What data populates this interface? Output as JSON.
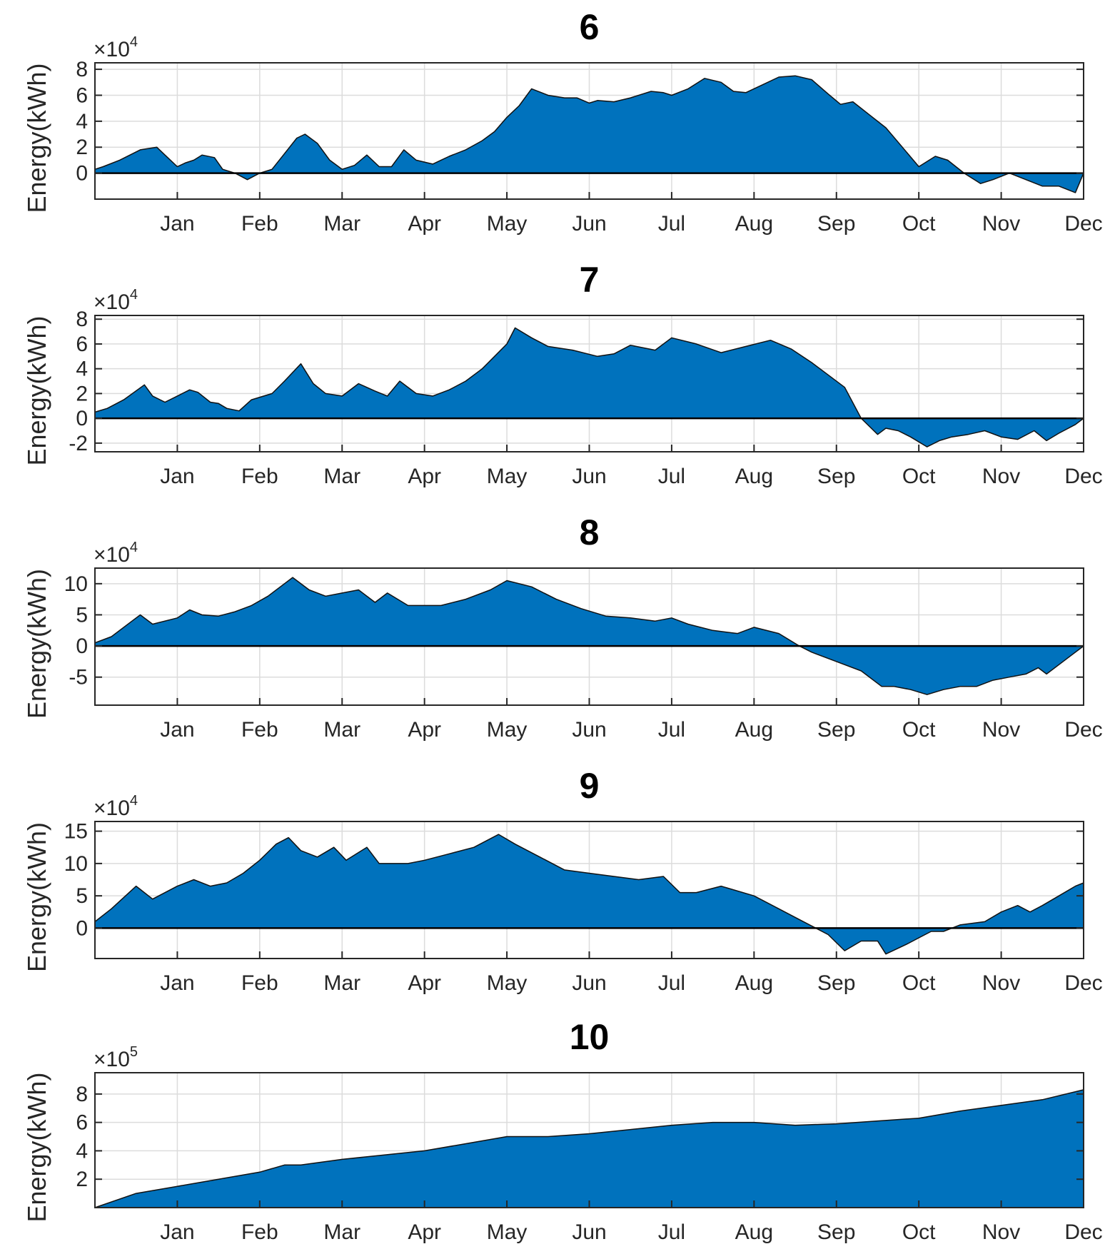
{
  "chart_data": [
    {
      "type": "area",
      "title": "6",
      "ylabel": "Energy(kWh)",
      "multiplier_base": "×10",
      "multiplier_exp": "4",
      "scale": 10000,
      "ylim": [
        -2,
        8.5
      ],
      "yticks": [
        0,
        2,
        4,
        6,
        8
      ],
      "ytick_labels": [
        "0",
        "2",
        "4",
        "6",
        "8"
      ],
      "fill_color": "#0072BD",
      "month_labels": [
        "Jan",
        "Feb",
        "Mar",
        "Apr",
        "May",
        "Jun",
        "Jul",
        "Aug",
        "Sep",
        "Oct",
        "Nov",
        "Dec"
      ],
      "x": [
        0,
        0.1,
        0.3,
        0.55,
        0.75,
        0.85,
        1.0,
        1.1,
        1.2,
        1.3,
        1.45,
        1.55,
        1.7,
        1.85,
        2.0,
        2.15,
        2.3,
        2.45,
        2.55,
        2.7,
        2.85,
        3.0,
        3.15,
        3.3,
        3.45,
        3.6,
        3.75,
        3.9,
        4.1,
        4.2,
        4.3,
        4.5,
        4.7,
        4.85,
        5.0,
        5.15,
        5.3,
        5.5,
        5.7,
        5.85,
        6.0,
        6.1,
        6.3,
        6.5,
        6.75,
        6.9,
        7.0,
        7.2,
        7.4,
        7.6,
        7.75,
        7.9,
        8.1,
        8.3,
        8.5,
        8.7,
        8.9,
        9.05,
        9.2,
        9.4,
        9.6,
        9.8,
        10.0,
        10.2,
        10.35,
        10.55,
        10.75,
        10.9,
        11.1,
        11.3,
        11.5,
        11.7,
        11.9,
        12.0
      ],
      "values": [
        0.3,
        0.5,
        1.0,
        1.8,
        2.0,
        1.4,
        0.5,
        0.8,
        1.0,
        1.4,
        1.2,
        0.3,
        0.0,
        -0.5,
        0.0,
        0.3,
        1.5,
        2.7,
        3.0,
        2.3,
        1.0,
        0.3,
        0.6,
        1.4,
        0.5,
        0.5,
        1.8,
        1.0,
        0.7,
        1.0,
        1.3,
        1.8,
        2.5,
        3.2,
        4.3,
        5.2,
        6.5,
        6.0,
        5.8,
        5.8,
        5.4,
        5.6,
        5.5,
        5.8,
        6.3,
        6.2,
        6.0,
        6.5,
        7.3,
        7.0,
        6.3,
        6.2,
        6.8,
        7.4,
        7.5,
        7.2,
        6.1,
        5.3,
        5.5,
        4.5,
        3.5,
        2.0,
        0.5,
        1.3,
        1.0,
        0.0,
        -0.8,
        -0.5,
        0.0,
        -0.5,
        -1.0,
        -1.0,
        -1.5,
        0.0
      ]
    },
    {
      "type": "area",
      "title": "7",
      "ylabel": "Energy(kWh)",
      "multiplier_base": "×10",
      "multiplier_exp": "4",
      "scale": 10000,
      "ylim": [
        -2.7,
        8.3
      ],
      "yticks": [
        -2,
        0,
        2,
        4,
        6,
        8
      ],
      "ytick_labels": [
        "-2",
        "0",
        "2",
        "4",
        "6",
        "8"
      ],
      "fill_color": "#0072BD",
      "month_labels": [
        "Jan",
        "Feb",
        "Mar",
        "Apr",
        "May",
        "Jun",
        "Jul",
        "Aug",
        "Sep",
        "Oct",
        "Nov",
        "Dec"
      ],
      "x": [
        0,
        0.15,
        0.35,
        0.6,
        0.7,
        0.85,
        1.0,
        1.15,
        1.25,
        1.4,
        1.5,
        1.6,
        1.75,
        1.9,
        2.15,
        2.3,
        2.5,
        2.65,
        2.8,
        3.0,
        3.2,
        3.4,
        3.55,
        3.7,
        3.9,
        4.1,
        4.3,
        4.5,
        4.7,
        4.85,
        5.0,
        5.1,
        5.3,
        5.5,
        5.8,
        6.1,
        6.3,
        6.5,
        6.8,
        7.0,
        7.3,
        7.6,
        7.9,
        8.2,
        8.45,
        8.7,
        8.9,
        9.1,
        9.3,
        9.5,
        9.6,
        9.75,
        9.9,
        10.1,
        10.25,
        10.4,
        10.6,
        10.8,
        11.0,
        11.2,
        11.4,
        11.55,
        11.7,
        11.9,
        12.0
      ],
      "values": [
        0.5,
        0.8,
        1.5,
        2.7,
        1.8,
        1.3,
        1.8,
        2.3,
        2.1,
        1.3,
        1.2,
        0.8,
        0.6,
        1.5,
        2.0,
        3.0,
        4.4,
        2.8,
        2.0,
        1.8,
        2.8,
        2.2,
        1.8,
        3.0,
        2.0,
        1.8,
        2.3,
        3.0,
        4.0,
        5.0,
        6.0,
        7.3,
        6.5,
        5.8,
        5.5,
        5.0,
        5.2,
        5.9,
        5.5,
        6.5,
        6.0,
        5.3,
        5.8,
        6.3,
        5.6,
        4.5,
        3.5,
        2.5,
        0.0,
        -1.3,
        -0.8,
        -1.0,
        -1.5,
        -2.3,
        -1.8,
        -1.5,
        -1.3,
        -1.0,
        -1.5,
        -1.7,
        -1.0,
        -1.8,
        -1.2,
        -0.5,
        0.0
      ]
    },
    {
      "type": "area",
      "title": "8",
      "ylabel": "Energy(kWh)",
      "multiplier_base": "×10",
      "multiplier_exp": "4",
      "scale": 10000,
      "ylim": [
        -9.5,
        12.5
      ],
      "yticks": [
        -5,
        0,
        5,
        10
      ],
      "ytick_labels": [
        "-5",
        "0",
        "5",
        "10"
      ],
      "fill_color": "#0072BD",
      "month_labels": [
        "Jan",
        "Feb",
        "Mar",
        "Apr",
        "May",
        "Jun",
        "Jul",
        "Aug",
        "Sep",
        "Oct",
        "Nov",
        "Dec"
      ],
      "x": [
        0,
        0.2,
        0.45,
        0.55,
        0.7,
        1.0,
        1.15,
        1.3,
        1.5,
        1.7,
        1.9,
        2.1,
        2.3,
        2.4,
        2.6,
        2.8,
        3.0,
        3.2,
        3.4,
        3.55,
        3.8,
        4.0,
        4.2,
        4.5,
        4.8,
        5.0,
        5.3,
        5.6,
        5.9,
        6.2,
        6.5,
        6.8,
        7.0,
        7.2,
        7.5,
        7.8,
        8.0,
        8.3,
        8.55,
        8.7,
        9.0,
        9.3,
        9.55,
        9.7,
        9.9,
        10.1,
        10.3,
        10.5,
        10.7,
        10.9,
        11.1,
        11.3,
        11.45,
        11.55,
        11.7,
        11.85,
        12.0
      ],
      "values": [
        0.5,
        1.5,
        4.0,
        5.0,
        3.5,
        4.5,
        5.8,
        5.0,
        4.8,
        5.5,
        6.5,
        8.0,
        10.0,
        11.0,
        9.0,
        8.0,
        8.5,
        9.0,
        7.0,
        8.5,
        6.5,
        6.5,
        6.5,
        7.5,
        9.0,
        10.5,
        9.5,
        7.5,
        6.0,
        4.8,
        4.5,
        4.0,
        4.5,
        3.5,
        2.5,
        2.0,
        3.0,
        2.0,
        0.0,
        -1.0,
        -2.5,
        -4.0,
        -6.5,
        -6.5,
        -7.0,
        -7.8,
        -7.0,
        -6.5,
        -6.5,
        -5.5,
        -5.0,
        -4.5,
        -3.5,
        -4.5,
        -3.0,
        -1.5,
        0.0
      ]
    },
    {
      "type": "area",
      "title": "9",
      "ylabel": "Energy(kWh)",
      "multiplier_base": "×10",
      "multiplier_exp": "4",
      "scale": 10000,
      "ylim": [
        -4.7,
        16.5
      ],
      "yticks": [
        0,
        5,
        10,
        15
      ],
      "ytick_labels": [
        "0",
        "5",
        "10",
        "15"
      ],
      "fill_color": "#0072BD",
      "month_labels": [
        "Jan",
        "Feb",
        "Mar",
        "Apr",
        "May",
        "Jun",
        "Jul",
        "Aug",
        "Sep",
        "Oct",
        "Nov",
        "Dec"
      ],
      "x": [
        0,
        0.2,
        0.5,
        0.55,
        0.7,
        1.0,
        1.2,
        1.4,
        1.6,
        1.8,
        2.0,
        2.2,
        2.35,
        2.5,
        2.7,
        2.9,
        3.05,
        3.3,
        3.45,
        3.8,
        4.0,
        4.3,
        4.6,
        4.9,
        5.1,
        5.4,
        5.7,
        6.0,
        6.3,
        6.6,
        6.9,
        7.1,
        7.3,
        7.6,
        8.0,
        8.3,
        8.6,
        8.9,
        9.1,
        9.3,
        9.5,
        9.6,
        9.85,
        10.0,
        10.15,
        10.3,
        10.5,
        10.8,
        11.0,
        11.2,
        11.35,
        11.5,
        11.7,
        11.9,
        12.0
      ],
      "values": [
        1.0,
        3.0,
        6.5,
        6.0,
        4.5,
        6.5,
        7.5,
        6.5,
        7.0,
        8.5,
        10.5,
        13.0,
        14.0,
        12.0,
        11.0,
        12.5,
        10.5,
        12.5,
        10.0,
        10.0,
        10.5,
        11.5,
        12.5,
        14.5,
        13.0,
        11.0,
        9.0,
        8.5,
        8.0,
        7.5,
        8.0,
        5.5,
        5.5,
        6.5,
        5.0,
        3.0,
        1.0,
        -1.0,
        -3.5,
        -2.0,
        -2.0,
        -4.0,
        -2.5,
        -1.5,
        -0.5,
        -0.5,
        0.5,
        1.0,
        2.5,
        3.5,
        2.5,
        3.5,
        5.0,
        6.5,
        7.0
      ]
    },
    {
      "type": "area",
      "title": "10",
      "ylabel": "Energy(kWh)",
      "multiplier_base": "×10",
      "multiplier_exp": "5",
      "scale": 100000,
      "ylim": [
        0,
        9.5
      ],
      "yticks": [
        2,
        4,
        6,
        8
      ],
      "ytick_labels": [
        "2",
        "4",
        "6",
        "8"
      ],
      "fill_color": "#0072BD",
      "month_labels": [
        "Jan",
        "Feb",
        "Mar",
        "Apr",
        "May",
        "Jun",
        "Jul",
        "Aug",
        "Sep",
        "Oct",
        "Nov",
        "Dec"
      ],
      "x": [
        0,
        0.5,
        1.0,
        1.5,
        2.0,
        2.3,
        2.5,
        3.0,
        3.5,
        4.0,
        4.5,
        5.0,
        5.5,
        6.0,
        6.5,
        7.0,
        7.5,
        8.0,
        8.5,
        9.0,
        9.5,
        10.0,
        10.5,
        11.0,
        11.5,
        12.0
      ],
      "values": [
        0.0,
        1.0,
        1.5,
        2.0,
        2.5,
        3.0,
        3.0,
        3.4,
        3.7,
        4.0,
        4.5,
        5.0,
        5.0,
        5.2,
        5.5,
        5.8,
        6.0,
        6.0,
        5.8,
        5.9,
        6.1,
        6.3,
        6.8,
        7.2,
        7.6,
        8.3
      ]
    }
  ]
}
